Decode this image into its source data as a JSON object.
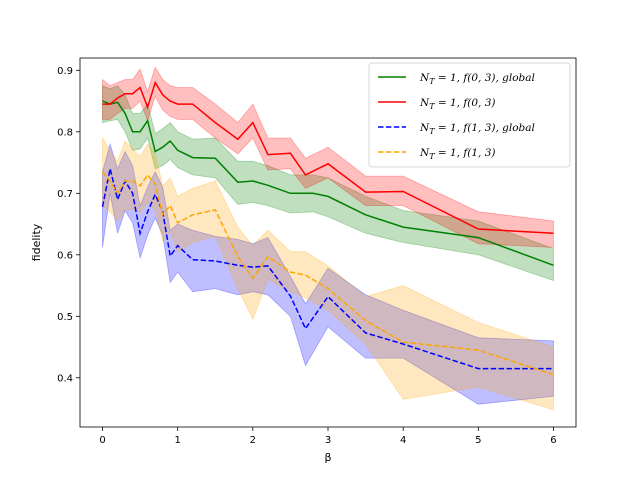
{
  "chart_data": {
    "type": "line",
    "title": "",
    "xlabel": "β",
    "ylabel": "fidelity",
    "xlim": [
      -0.3,
      6.3
    ],
    "ylim": [
      0.32,
      0.92
    ],
    "xticks": [
      0,
      1,
      2,
      3,
      4,
      5,
      6
    ],
    "xtick_labels": [
      "0",
      "1",
      "2",
      "3",
      "4",
      "5",
      "6"
    ],
    "yticks": [
      0.4,
      0.5,
      0.6,
      0.7,
      0.8,
      0.9
    ],
    "ytick_labels": [
      "0.4",
      "0.5",
      "0.6",
      "0.7",
      "0.8",
      "0.9"
    ],
    "legend_position": "top-right",
    "series": [
      {
        "name": "N_T = 1, f(0, 3), global",
        "label_parts": {
          "main": "N",
          "sub": "T",
          "rest": " = 1, f(0, 3), global"
        },
        "color": "#008000",
        "dash": "solid",
        "x": [
          0,
          0.1,
          0.2,
          0.3,
          0.4,
          0.5,
          0.6,
          0.7,
          0.8,
          0.9,
          1.0,
          1.2,
          1.5,
          1.8,
          2.0,
          2.2,
          2.5,
          2.8,
          3.0,
          3.5,
          4.0,
          5.0,
          6.0
        ],
        "y": [
          0.85,
          0.845,
          0.848,
          0.83,
          0.8,
          0.8,
          0.818,
          0.768,
          0.775,
          0.785,
          0.77,
          0.758,
          0.757,
          0.718,
          0.72,
          0.713,
          0.7,
          0.7,
          0.695,
          0.665,
          0.645,
          0.628,
          0.583
        ],
        "lower": [
          0.815,
          0.818,
          0.82,
          0.8,
          0.77,
          0.772,
          0.79,
          0.74,
          0.745,
          0.755,
          0.742,
          0.73,
          0.725,
          0.682,
          0.685,
          0.68,
          0.668,
          0.67,
          0.662,
          0.635,
          0.62,
          0.6,
          0.558
        ],
        "upper": [
          0.875,
          0.87,
          0.875,
          0.86,
          0.83,
          0.83,
          0.845,
          0.797,
          0.805,
          0.815,
          0.8,
          0.788,
          0.79,
          0.752,
          0.752,
          0.745,
          0.73,
          0.73,
          0.725,
          0.695,
          0.672,
          0.655,
          0.61
        ]
      },
      {
        "name": "N_T = 1, f(0, 3)",
        "label_parts": {
          "main": "N",
          "sub": "T",
          "rest": " = 1, f(0, 3)"
        },
        "color": "#ff0000",
        "dash": "solid",
        "x": [
          0,
          0.1,
          0.2,
          0.3,
          0.4,
          0.5,
          0.6,
          0.7,
          0.8,
          0.9,
          1.0,
          1.2,
          1.5,
          1.8,
          2.0,
          2.2,
          2.5,
          2.7,
          3.0,
          3.5,
          4.0,
          5.0,
          6.0
        ],
        "y": [
          0.845,
          0.845,
          0.855,
          0.862,
          0.862,
          0.872,
          0.84,
          0.88,
          0.86,
          0.85,
          0.845,
          0.845,
          0.815,
          0.788,
          0.815,
          0.763,
          0.765,
          0.73,
          0.748,
          0.702,
          0.703,
          0.642,
          0.635
        ],
        "lower": [
          0.82,
          0.82,
          0.83,
          0.838,
          0.838,
          0.85,
          0.818,
          0.858,
          0.835,
          0.825,
          0.82,
          0.82,
          0.79,
          0.764,
          0.79,
          0.738,
          0.74,
          0.708,
          0.725,
          0.68,
          0.68,
          0.618,
          0.612
        ],
        "upper": [
          0.885,
          0.875,
          0.88,
          0.885,
          0.885,
          0.902,
          0.865,
          0.905,
          0.885,
          0.875,
          0.872,
          0.872,
          0.845,
          0.815,
          0.845,
          0.79,
          0.79,
          0.757,
          0.775,
          0.728,
          0.728,
          0.67,
          0.655
        ]
      },
      {
        "name": "N_T = 1, f(1, 3), global",
        "label_parts": {
          "main": "N",
          "sub": "T",
          "rest": " = 1, f(1, 3), global"
        },
        "color": "#0000ff",
        "dash": "dashed",
        "x": [
          0,
          0.1,
          0.2,
          0.3,
          0.4,
          0.5,
          0.6,
          0.7,
          0.8,
          0.9,
          1.0,
          1.2,
          1.5,
          1.8,
          2.0,
          2.2,
          2.5,
          2.7,
          3.0,
          3.5,
          4.0,
          5.0,
          6.0
        ],
        "y": [
          0.678,
          0.74,
          0.69,
          0.72,
          0.7,
          0.635,
          0.67,
          0.698,
          0.67,
          0.598,
          0.615,
          0.592,
          0.59,
          0.583,
          0.58,
          0.582,
          0.533,
          0.48,
          0.532,
          0.473,
          0.455,
          0.415,
          0.415
        ],
        "lower": [
          0.612,
          0.7,
          0.635,
          0.672,
          0.652,
          0.595,
          0.632,
          0.66,
          0.632,
          0.555,
          0.572,
          0.54,
          0.545,
          0.535,
          0.54,
          0.535,
          0.5,
          0.42,
          0.483,
          0.432,
          0.432,
          0.357,
          0.37
        ],
        "upper": [
          0.735,
          0.78,
          0.74,
          0.768,
          0.745,
          0.68,
          0.71,
          0.735,
          0.71,
          0.64,
          0.65,
          0.64,
          0.63,
          0.625,
          0.618,
          0.628,
          0.565,
          0.52,
          0.578,
          0.535,
          0.51,
          0.465,
          0.46
        ]
      },
      {
        "name": "N_T = 1, f(1, 3)",
        "label_parts": {
          "main": "N",
          "sub": "T",
          "rest": " = 1, f(1, 3)"
        },
        "color": "#ffa500",
        "dash": "dashed",
        "x": [
          0,
          0.1,
          0.2,
          0.3,
          0.4,
          0.5,
          0.6,
          0.7,
          0.8,
          0.9,
          1.0,
          1.2,
          1.5,
          1.8,
          2.0,
          2.2,
          2.5,
          2.7,
          3.0,
          3.5,
          4.0,
          5.0,
          6.0
        ],
        "y": [
          0.735,
          0.72,
          0.7,
          0.72,
          0.72,
          0.712,
          0.73,
          0.715,
          0.665,
          0.68,
          0.652,
          0.665,
          0.673,
          0.597,
          0.562,
          0.597,
          0.572,
          0.567,
          0.545,
          0.493,
          0.458,
          0.445,
          0.405
        ],
        "lower": [
          0.68,
          0.67,
          0.655,
          0.672,
          0.675,
          0.668,
          0.685,
          0.672,
          0.622,
          0.638,
          0.605,
          0.62,
          0.63,
          0.545,
          0.495,
          0.56,
          0.54,
          0.53,
          0.51,
          0.455,
          0.365,
          0.385,
          0.348
        ],
        "upper": [
          0.79,
          0.77,
          0.752,
          0.785,
          0.772,
          0.76,
          0.78,
          0.765,
          0.712,
          0.725,
          0.695,
          0.708,
          0.72,
          0.645,
          0.615,
          0.64,
          0.605,
          0.605,
          0.582,
          0.532,
          0.55,
          0.49,
          0.45
        ]
      }
    ]
  }
}
